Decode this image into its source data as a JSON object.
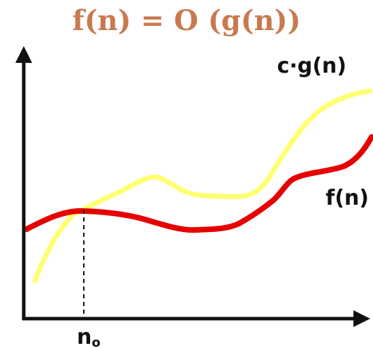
{
  "title": "f(n) = O (g(n))",
  "curves": {
    "upper_label": "c·g(n)",
    "lower_label": "f(n)",
    "upper_color": "#ffff70",
    "lower_color": "#e60000"
  },
  "x_axis_marker": {
    "label_base": "n",
    "label_sub": "o"
  },
  "colors": {
    "title": "#c87a4e",
    "axes": "#111111"
  }
}
